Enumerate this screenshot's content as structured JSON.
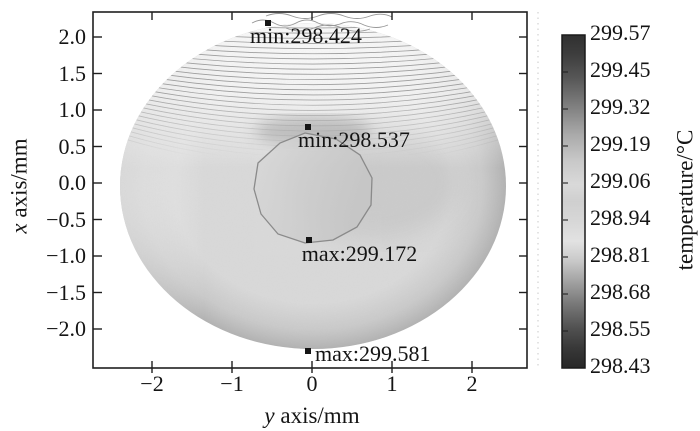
{
  "figure": {
    "background": "#ffffff",
    "description_colors": {
      "text": "#141414",
      "frame": "#1f1f1f",
      "contour_line": "#8a8a8a"
    }
  },
  "axes": {
    "x": {
      "label_italic": "y",
      "label_rest": " axis/mm",
      "tick_labels": [
        "−2",
        "−1",
        "0",
        "1",
        "2"
      ]
    },
    "y": {
      "label_italic": "x",
      "label_rest": " axis/mm",
      "tick_labels": [
        "2.0",
        "1.5",
        "1.0",
        "0.5",
        "0.0",
        "−0.5",
        "−1.0",
        "−1.5",
        "−2.0"
      ]
    },
    "colorbar": {
      "label": "temperature/°C",
      "tick_labels": [
        "299.57",
        "299.45",
        "299.32",
        "299.19",
        "299.06",
        "298.94",
        "298.81",
        "298.68",
        "298.55",
        "298.43"
      ]
    }
  },
  "chart_data": {
    "type": "heatmap",
    "subtype": "filled contour plot of temperature over a circular specimen cross-section",
    "title": "",
    "xlabel": "y axis/mm",
    "ylabel": "x axis/mm",
    "xlim": [
      -2.7,
      2.7
    ],
    "ylim": [
      -2.4,
      2.45
    ],
    "x_ticks": [
      -2,
      -1,
      0,
      1,
      2
    ],
    "y_ticks": [
      2.0,
      1.5,
      1.0,
      0.5,
      0.0,
      -0.5,
      -1.0,
      -1.5,
      -2.0
    ],
    "grid": false,
    "domain": {
      "shape": "circle",
      "center_mm": [
        0,
        0
      ],
      "radius_mm": 2.4
    },
    "colorbar": {
      "label": "temperature/°C",
      "min": 298.43,
      "max": 299.57,
      "tick_values": [
        299.57,
        299.45,
        299.32,
        299.19,
        299.06,
        298.94,
        298.81,
        298.68,
        298.55,
        298.43
      ],
      "style": "grayscale; dark at both extremes, lightest in the 298.81–299.06 mid-range"
    },
    "annotations": [
      {
        "label": "min:298.424",
        "kind": "min",
        "value": 298.424,
        "y_mm": -0.55,
        "x_mm": 2.19
      },
      {
        "label": "min:298.537",
        "kind": "min",
        "value": 298.537,
        "y_mm": -0.05,
        "x_mm": 0.77
      },
      {
        "label": "max:299.172",
        "kind": "max",
        "value": 299.172,
        "y_mm": -0.04,
        "x_mm": -0.78
      },
      {
        "label": "max:299.581",
        "kind": "max",
        "value": 299.581,
        "y_mm": -0.05,
        "x_mm": -2.3
      }
    ],
    "features": [
      "dense wavy isotherm lines fan across the upper part of the disk near min:298.424",
      "closed roughly decagonal isotherm loop around the center between min:298.537 and max:299.172",
      "smooth light-gray shading over lower half of the disk, darker band along bottom rim"
    ]
  }
}
